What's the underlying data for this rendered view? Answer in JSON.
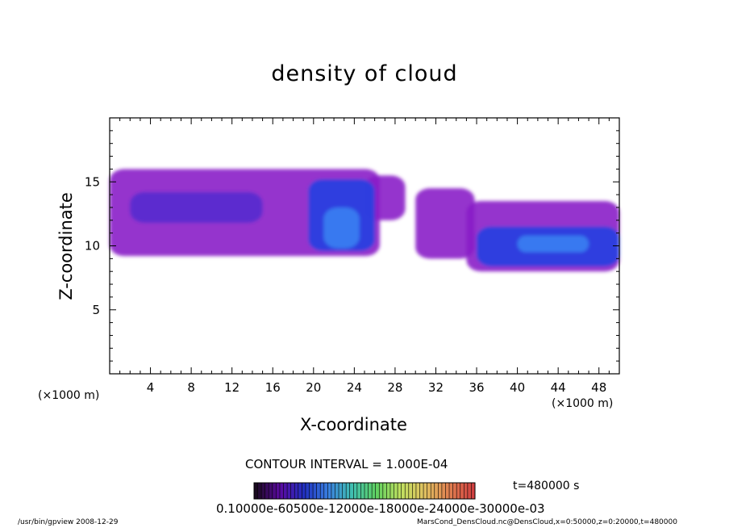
{
  "chart_data": {
    "type": "heatmap",
    "title": "density of cloud",
    "xlabel": "X-coordinate",
    "ylabel": "Z-coordinate",
    "x_unit_left": "(×1000 m)",
    "x_unit_right": "(×1000 m)",
    "xlim": [
      0,
      50
    ],
    "ylim": [
      0,
      20
    ],
    "xticks": [
      "4",
      "8",
      "12",
      "16",
      "20",
      "24",
      "28",
      "32",
      "36",
      "40",
      "44",
      "48"
    ],
    "xtick_values": [
      4,
      8,
      12,
      16,
      20,
      24,
      28,
      32,
      36,
      40,
      44,
      48
    ],
    "yticks": [
      "5",
      "10",
      "15"
    ],
    "ytick_values": [
      5,
      10,
      15
    ],
    "contour_interval": "CONTOUR INTERVAL = 1.000E-04",
    "time_label": "t=480000 s",
    "colorbar_tick_text": "0.10000e-60500e-12000e-18000e-24000e-30000e-03",
    "colorbar_colors": [
      "#1a0a20",
      "#5a0aa0",
      "#2030c0",
      "#3a80e0",
      "#40c0b0",
      "#60d060",
      "#c0e060",
      "#e0c060",
      "#e08050",
      "#d04040"
    ],
    "cloud_colors": {
      "low": "#8a1ec8",
      "mid": "#5a2ad0",
      "high": "#2a40e0",
      "peak": "#3a7cf0"
    },
    "regions": [
      {
        "level": "low",
        "x": [
          0.0,
          26.5
        ],
        "z": [
          9.2,
          16.0
        ]
      },
      {
        "level": "mid",
        "x": [
          2.0,
          15.0
        ],
        "z": [
          11.8,
          14.2
        ]
      },
      {
        "level": "low",
        "x": [
          25.0,
          29.0
        ],
        "z": [
          12.0,
          15.5
        ]
      },
      {
        "level": "high",
        "x": [
          19.5,
          26.0
        ],
        "z": [
          9.6,
          15.2
        ]
      },
      {
        "level": "peak",
        "x": [
          21.0,
          24.5
        ],
        "z": [
          9.8,
          13.0
        ]
      },
      {
        "level": "low",
        "x": [
          30.0,
          35.8
        ],
        "z": [
          9.0,
          14.5
        ]
      },
      {
        "level": "low",
        "x": [
          35.0,
          50.0
        ],
        "z": [
          8.0,
          13.5
        ]
      },
      {
        "level": "high",
        "x": [
          36.0,
          50.0
        ],
        "z": [
          8.4,
          11.5
        ]
      },
      {
        "level": "peak",
        "x": [
          40.0,
          47.0
        ],
        "z": [
          9.5,
          10.8
        ]
      }
    ]
  },
  "footer": {
    "left": "/usr/bin/gpview   2008-12-29",
    "right": "MarsCond_DensCloud.nc@DensCloud,x=0:50000,z=0:20000,t=480000"
  }
}
